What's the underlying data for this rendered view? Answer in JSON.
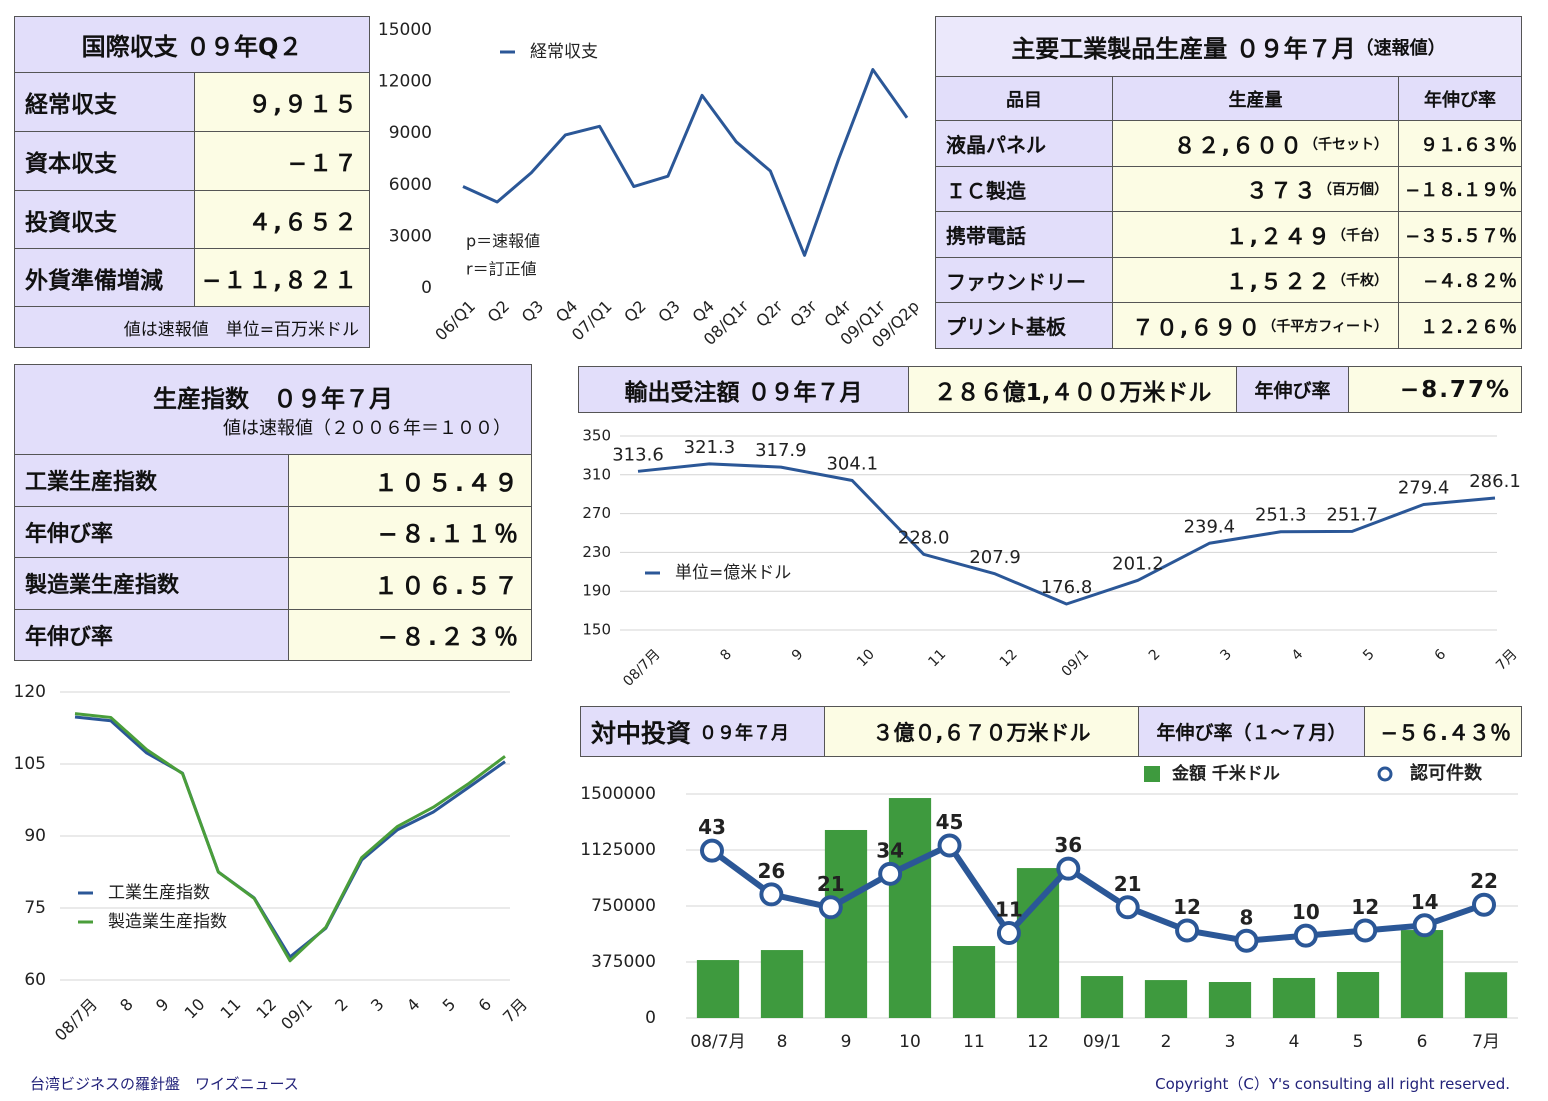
{
  "balance": {
    "title": "国際収支 ０９年Q２",
    "rows": [
      [
        "経常収支",
        "９,９１５"
      ],
      [
        "資本収支",
        "−１７"
      ],
      [
        "投資収支",
        "４,６５２"
      ],
      [
        "外貨準備増減",
        "−１１,８２１"
      ]
    ],
    "note": "値は速報値　単位=百万米ドル"
  },
  "production": {
    "title": "主要工業製品生産量 ０９年７月",
    "title_note": "（速報値）",
    "header": [
      "品目",
      "生産量",
      "年伸び率"
    ],
    "rows": [
      [
        "液晶パネル",
        "８２,６００",
        "（千セット）",
        "９１.６３％"
      ],
      [
        "ＩＣ製造",
        "３７３",
        "（百万個）",
        "−１８.１９％"
      ],
      [
        "携帯電話",
        "１,２４９",
        "（千台）",
        "−３５.５７％"
      ],
      [
        "ファウンドリー",
        "１,５２２",
        "（千枚）",
        "−４.８２％"
      ],
      [
        "プリント基板",
        "７０,６９０",
        "（千平方フィート）",
        "１２.２６％"
      ]
    ]
  },
  "index": {
    "title": "生産指数　０９年７月",
    "subtitle": "値は速報値（２００６年＝１００）",
    "rows": [
      [
        "工業生産指数",
        "１０５.４９"
      ],
      [
        "年伸び率",
        "−８.１１％"
      ],
      [
        "製造業生産指数",
        "１０６.５７"
      ],
      [
        "年伸び率",
        "−８.２３％"
      ]
    ]
  },
  "export": {
    "title": "輸出受注額 ０９年７月",
    "amount": "２８６億1,４００万米ドル",
    "growth_label": "年伸び率",
    "growth": "−8.77%"
  },
  "investment": {
    "title": "対中投資",
    "date": "０９年７月",
    "amount": "３億０,６７０万米ドル",
    "growth_label": "年伸び率（１〜７月）",
    "growth": "−５６.４３％"
  },
  "footer": {
    "left": "台湾ビジネスの羅針盤　ワイズニュース",
    "right": "Copyright（C）Y's consulting all right reserved."
  },
  "chart_data": [
    {
      "type": "line",
      "categories": [
        "06/Q1",
        "Q2",
        "Q3",
        "Q4",
        "07/Q1",
        "Q2",
        "Q3",
        "Q4",
        "08/Q1r",
        "Q2r",
        "Q3r",
        "Q4r",
        "09/Q1r",
        "09/Q2p"
      ],
      "series": [
        {
          "name": "経常収支",
          "color": "#2b5797",
          "values": [
            5900,
            5000,
            6700,
            8900,
            9400,
            5900,
            6500,
            11200,
            8500,
            6800,
            1900,
            7500,
            12700,
            9900
          ]
        }
      ],
      "ylim": [
        0,
        15000
      ],
      "yticks": [
        0,
        3000,
        6000,
        9000,
        12000,
        15000
      ],
      "annotations": [
        "p＝速報値",
        "r＝訂正値"
      ]
    },
    {
      "type": "line",
      "categories": [
        "08/7月",
        "8",
        "9",
        "10",
        "11",
        "12",
        "09/1",
        "2",
        "3",
        "4",
        "5",
        "6",
        "7月"
      ],
      "series": [
        {
          "name": "単位=億米ドル",
          "color": "#2b5797",
          "values": [
            313.6,
            321.3,
            317.9,
            304.1,
            228.0,
            207.9,
            176.8,
            201.2,
            239.4,
            251.3,
            251.7,
            279.4,
            286.1
          ],
          "value_labels": [
            "313.6",
            "321.3",
            "317.9",
            "304.1",
            "228.0",
            "207.9",
            "176.8",
            "201.2",
            "239.4",
            "251.3",
            "251.7",
            "279.4",
            "286.1"
          ]
        }
      ],
      "ylim": [
        150,
        350
      ],
      "yticks": [
        150,
        190,
        230,
        270,
        310,
        350
      ],
      "grid": true,
      "data_labels": true
    },
    {
      "type": "line",
      "categories": [
        "08/7月",
        "8",
        "9",
        "10",
        "11",
        "12",
        "09/1",
        "2",
        "3",
        "4",
        "5",
        "6",
        "7月"
      ],
      "series": [
        {
          "name": "工業生産指数",
          "color": "#2b5797",
          "values": [
            114.8,
            114,
            107.3,
            103.1,
            82.5,
            77.1,
            64.8,
            70.8,
            85,
            91.3,
            95,
            100.2,
            105.5
          ]
        },
        {
          "name": "製造業生産指数",
          "color": "#4a9e3a",
          "values": [
            115.5,
            114.7,
            108,
            103,
            82.5,
            77,
            64,
            71,
            85.5,
            92,
            96,
            101,
            106.6
          ]
        }
      ],
      "ylim": [
        60,
        120
      ],
      "yticks": [
        60,
        75,
        90,
        105,
        120
      ],
      "grid": true
    },
    {
      "type": "bar",
      "categories": [
        "08/7月",
        "8",
        "9",
        "10",
        "11",
        "12",
        "09/1",
        "2",
        "3",
        "4",
        "5",
        "6",
        "7月"
      ],
      "series": [
        {
          "name": "金額 千米ドル",
          "color": "#3e9a3e",
          "values": [
            388000,
            455000,
            1259000,
            1473000,
            482000,
            1004000,
            281000,
            254000,
            241000,
            268000,
            308000,
            589000,
            306700
          ]
        }
      ],
      "ylim": [
        0,
        1500000
      ],
      "yticks": [
        0,
        375000,
        750000,
        1125000,
        1500000
      ],
      "grid": true
    },
    {
      "type": "line",
      "series": [
        {
          "name": "認可件数",
          "color": "#2b5797",
          "values": [
            43,
            26,
            21,
            34,
            45,
            11,
            36,
            21,
            12,
            8,
            10,
            12,
            14,
            22
          ]
        }
      ],
      "ylim": [
        -22,
        65
      ],
      "markers": true,
      "data_labels": true
    }
  ]
}
